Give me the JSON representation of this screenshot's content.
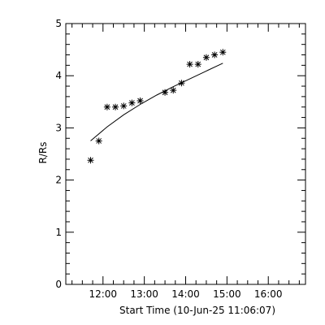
{
  "chart_data": {
    "type": "scatter",
    "title": "",
    "xlabel": "Start Time (10-Jun-25 11:06:07)",
    "ylabel": "R/Rs",
    "x_axis": {
      "min": "11:06",
      "max": "16:54",
      "tick_labels": [
        "12:00",
        "13:00",
        "14:00",
        "15:00",
        "16:00"
      ],
      "tick_values": [
        "12:00",
        "13:00",
        "14:00",
        "15:00",
        "16:00"
      ]
    },
    "y_axis": {
      "min": 0,
      "max": 5,
      "tick_labels": [
        "0",
        "1",
        "2",
        "3",
        "4",
        "5"
      ],
      "tick_values": [
        0,
        1,
        2,
        3,
        4,
        5
      ]
    },
    "grid": false,
    "series": [
      {
        "type": "scatter",
        "marker": "asterisk",
        "x": [
          "11:42",
          "11:54",
          "12:06",
          "12:18",
          "12:30",
          "12:42",
          "12:54",
          "13:30",
          "13:42",
          "13:54",
          "14:06",
          "14:18",
          "14:30",
          "14:42",
          "14:54"
        ],
        "y": [
          2.38,
          2.75,
          3.4,
          3.4,
          3.42,
          3.48,
          3.52,
          3.68,
          3.72,
          3.86,
          4.22,
          4.22,
          4.35,
          4.4,
          4.45
        ]
      },
      {
        "type": "line",
        "x": [
          "11:42",
          "12:06",
          "12:30",
          "12:54",
          "13:18",
          "13:42",
          "14:06",
          "14:30",
          "14:54"
        ],
        "y": [
          2.75,
          3.02,
          3.25,
          3.45,
          3.63,
          3.79,
          3.94,
          4.09,
          4.24
        ]
      }
    ],
    "colors": {
      "axis": "#000000",
      "markers": "#000000",
      "line": "#000000",
      "background": "#ffffff"
    }
  }
}
